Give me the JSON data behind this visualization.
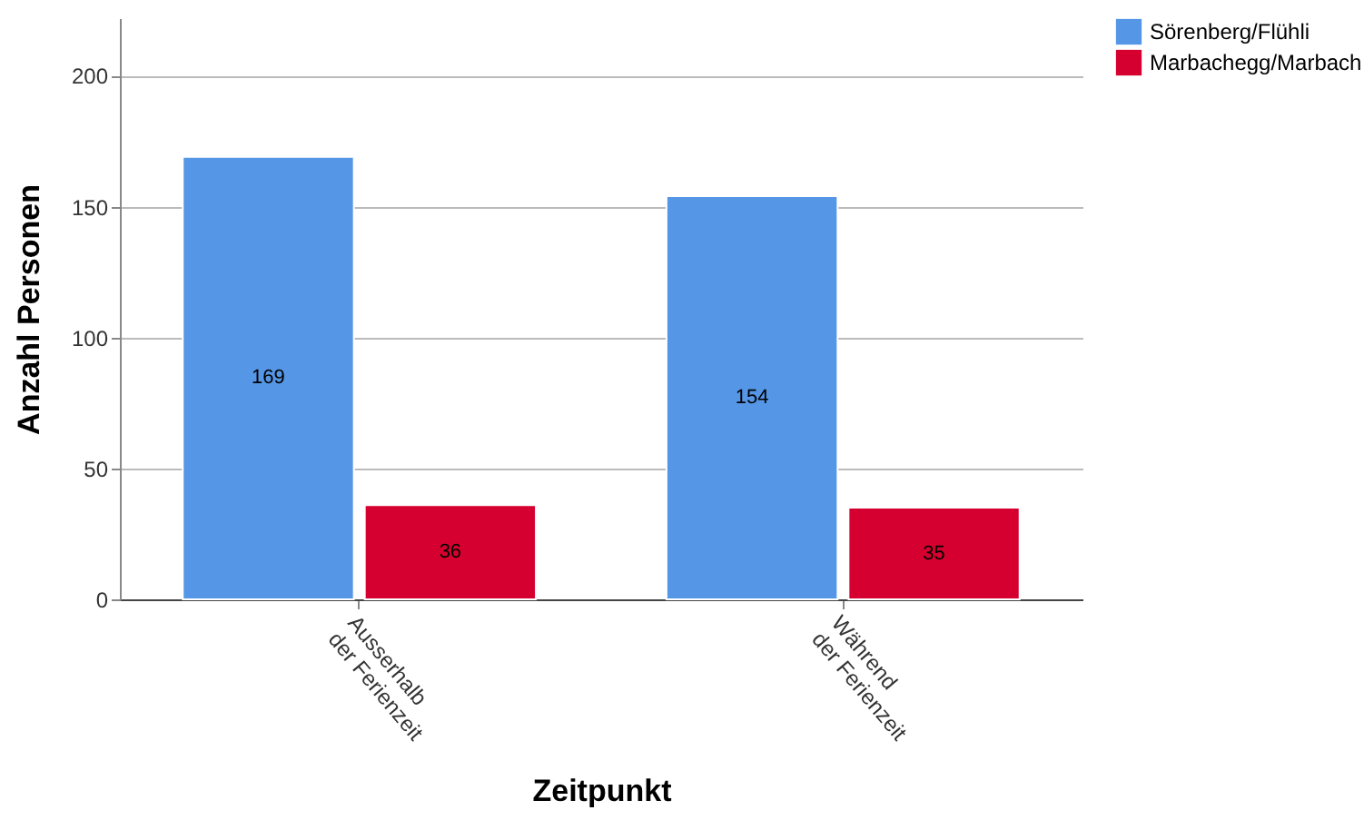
{
  "chart_data": {
    "type": "bar",
    "xlabel": "Zeitpunkt",
    "ylabel": "Anzahl Personen",
    "categories": [
      "Ausserhalb der Ferienzeit",
      "Während der Ferienzeit"
    ],
    "series": [
      {
        "name": "Sörenberg/Flühli",
        "color": "#5596e6",
        "values": [
          169,
          154
        ]
      },
      {
        "name": "Marbachegg/Marbach",
        "color": "#d5002f",
        "values": [
          36,
          35
        ]
      }
    ],
    "ylim": [
      0,
      222
    ],
    "yticks": [
      0,
      50,
      100,
      150,
      200
    ],
    "grid": "y",
    "legend": "top right",
    "data_labels": true
  }
}
